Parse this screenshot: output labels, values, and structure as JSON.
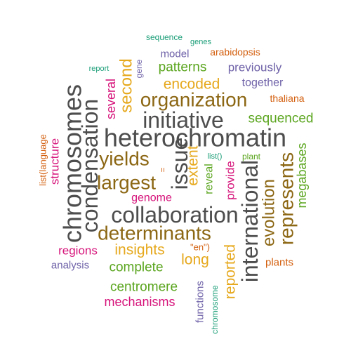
{
  "words": [
    {
      "text": "heterochromatin",
      "color": "#4d4d4d"
    },
    {
      "text": "collaboration",
      "color": "#4d4d4d"
    },
    {
      "text": "chromosomes",
      "color": "#4d4d4d"
    },
    {
      "text": "condensation",
      "color": "#4d4d4d"
    },
    {
      "text": "international",
      "color": "#4d4d4d"
    },
    {
      "text": "initiative",
      "color": "#4d4d4d"
    },
    {
      "text": "issue",
      "color": "#4d4d4d"
    },
    {
      "text": "determinants",
      "color": "#8c6714"
    },
    {
      "text": "organization",
      "color": "#8c6714"
    },
    {
      "text": "largest",
      "color": "#8c6714"
    },
    {
      "text": "yields",
      "color": "#8c6714"
    },
    {
      "text": "represents",
      "color": "#8c6714"
    },
    {
      "text": "evolution",
      "color": "#8c6714"
    },
    {
      "text": "encoded",
      "color": "#e6a81c"
    },
    {
      "text": "second",
      "color": "#e6a81c"
    },
    {
      "text": "extent",
      "color": "#e6a81c"
    },
    {
      "text": "insights",
      "color": "#e6a81c"
    },
    {
      "text": "long",
      "color": "#e6a81c"
    },
    {
      "text": "reported",
      "color": "#e6a81c"
    },
    {
      "text": "patterns",
      "color": "#5aa51e"
    },
    {
      "text": "sequenced",
      "color": "#5aa51e"
    },
    {
      "text": "megabases",
      "color": "#5aa51e"
    },
    {
      "text": "reveal",
      "color": "#5aa51e"
    },
    {
      "text": "complete",
      "color": "#5aa51e"
    },
    {
      "text": "centromere",
      "color": "#5aa51e"
    },
    {
      "text": "plant",
      "color": "#5aa51e"
    },
    {
      "text": "previously",
      "color": "#6f62a8"
    },
    {
      "text": "model",
      "color": "#6f62a8"
    },
    {
      "text": "together",
      "color": "#6f62a8"
    },
    {
      "text": "analysis",
      "color": "#6f62a8"
    },
    {
      "text": "functions",
      "color": "#6f62a8"
    },
    {
      "text": "gene",
      "color": "#6f62a8"
    },
    {
      "text": "several",
      "color": "#d6137a"
    },
    {
      "text": "structure",
      "color": "#d6137a"
    },
    {
      "text": "genome",
      "color": "#d6137a"
    },
    {
      "text": "provide",
      "color": "#d6137a"
    },
    {
      "text": "regions",
      "color": "#d6137a"
    },
    {
      "text": "mechanisms",
      "color": "#d6137a"
    },
    {
      "text": "arabidopsis",
      "color": "#d35f0e"
    },
    {
      "text": "thaliana",
      "color": "#d35f0e"
    },
    {
      "text": "plants",
      "color": "#d35f0e"
    },
    {
      "text": "list(language",
      "color": "#d35f0e"
    },
    {
      "text": "\"en\")",
      "color": "#d35f0e"
    },
    {
      "text": "=",
      "color": "#d35f0e"
    },
    {
      "text": "sequence",
      "color": "#1b9e77"
    },
    {
      "text": "genes",
      "color": "#1b9e77"
    },
    {
      "text": "report",
      "color": "#1b9e77"
    },
    {
      "text": "list()",
      "color": "#1b9e77"
    },
    {
      "text": "chromosome",
      "color": "#1b9e77"
    }
  ]
}
